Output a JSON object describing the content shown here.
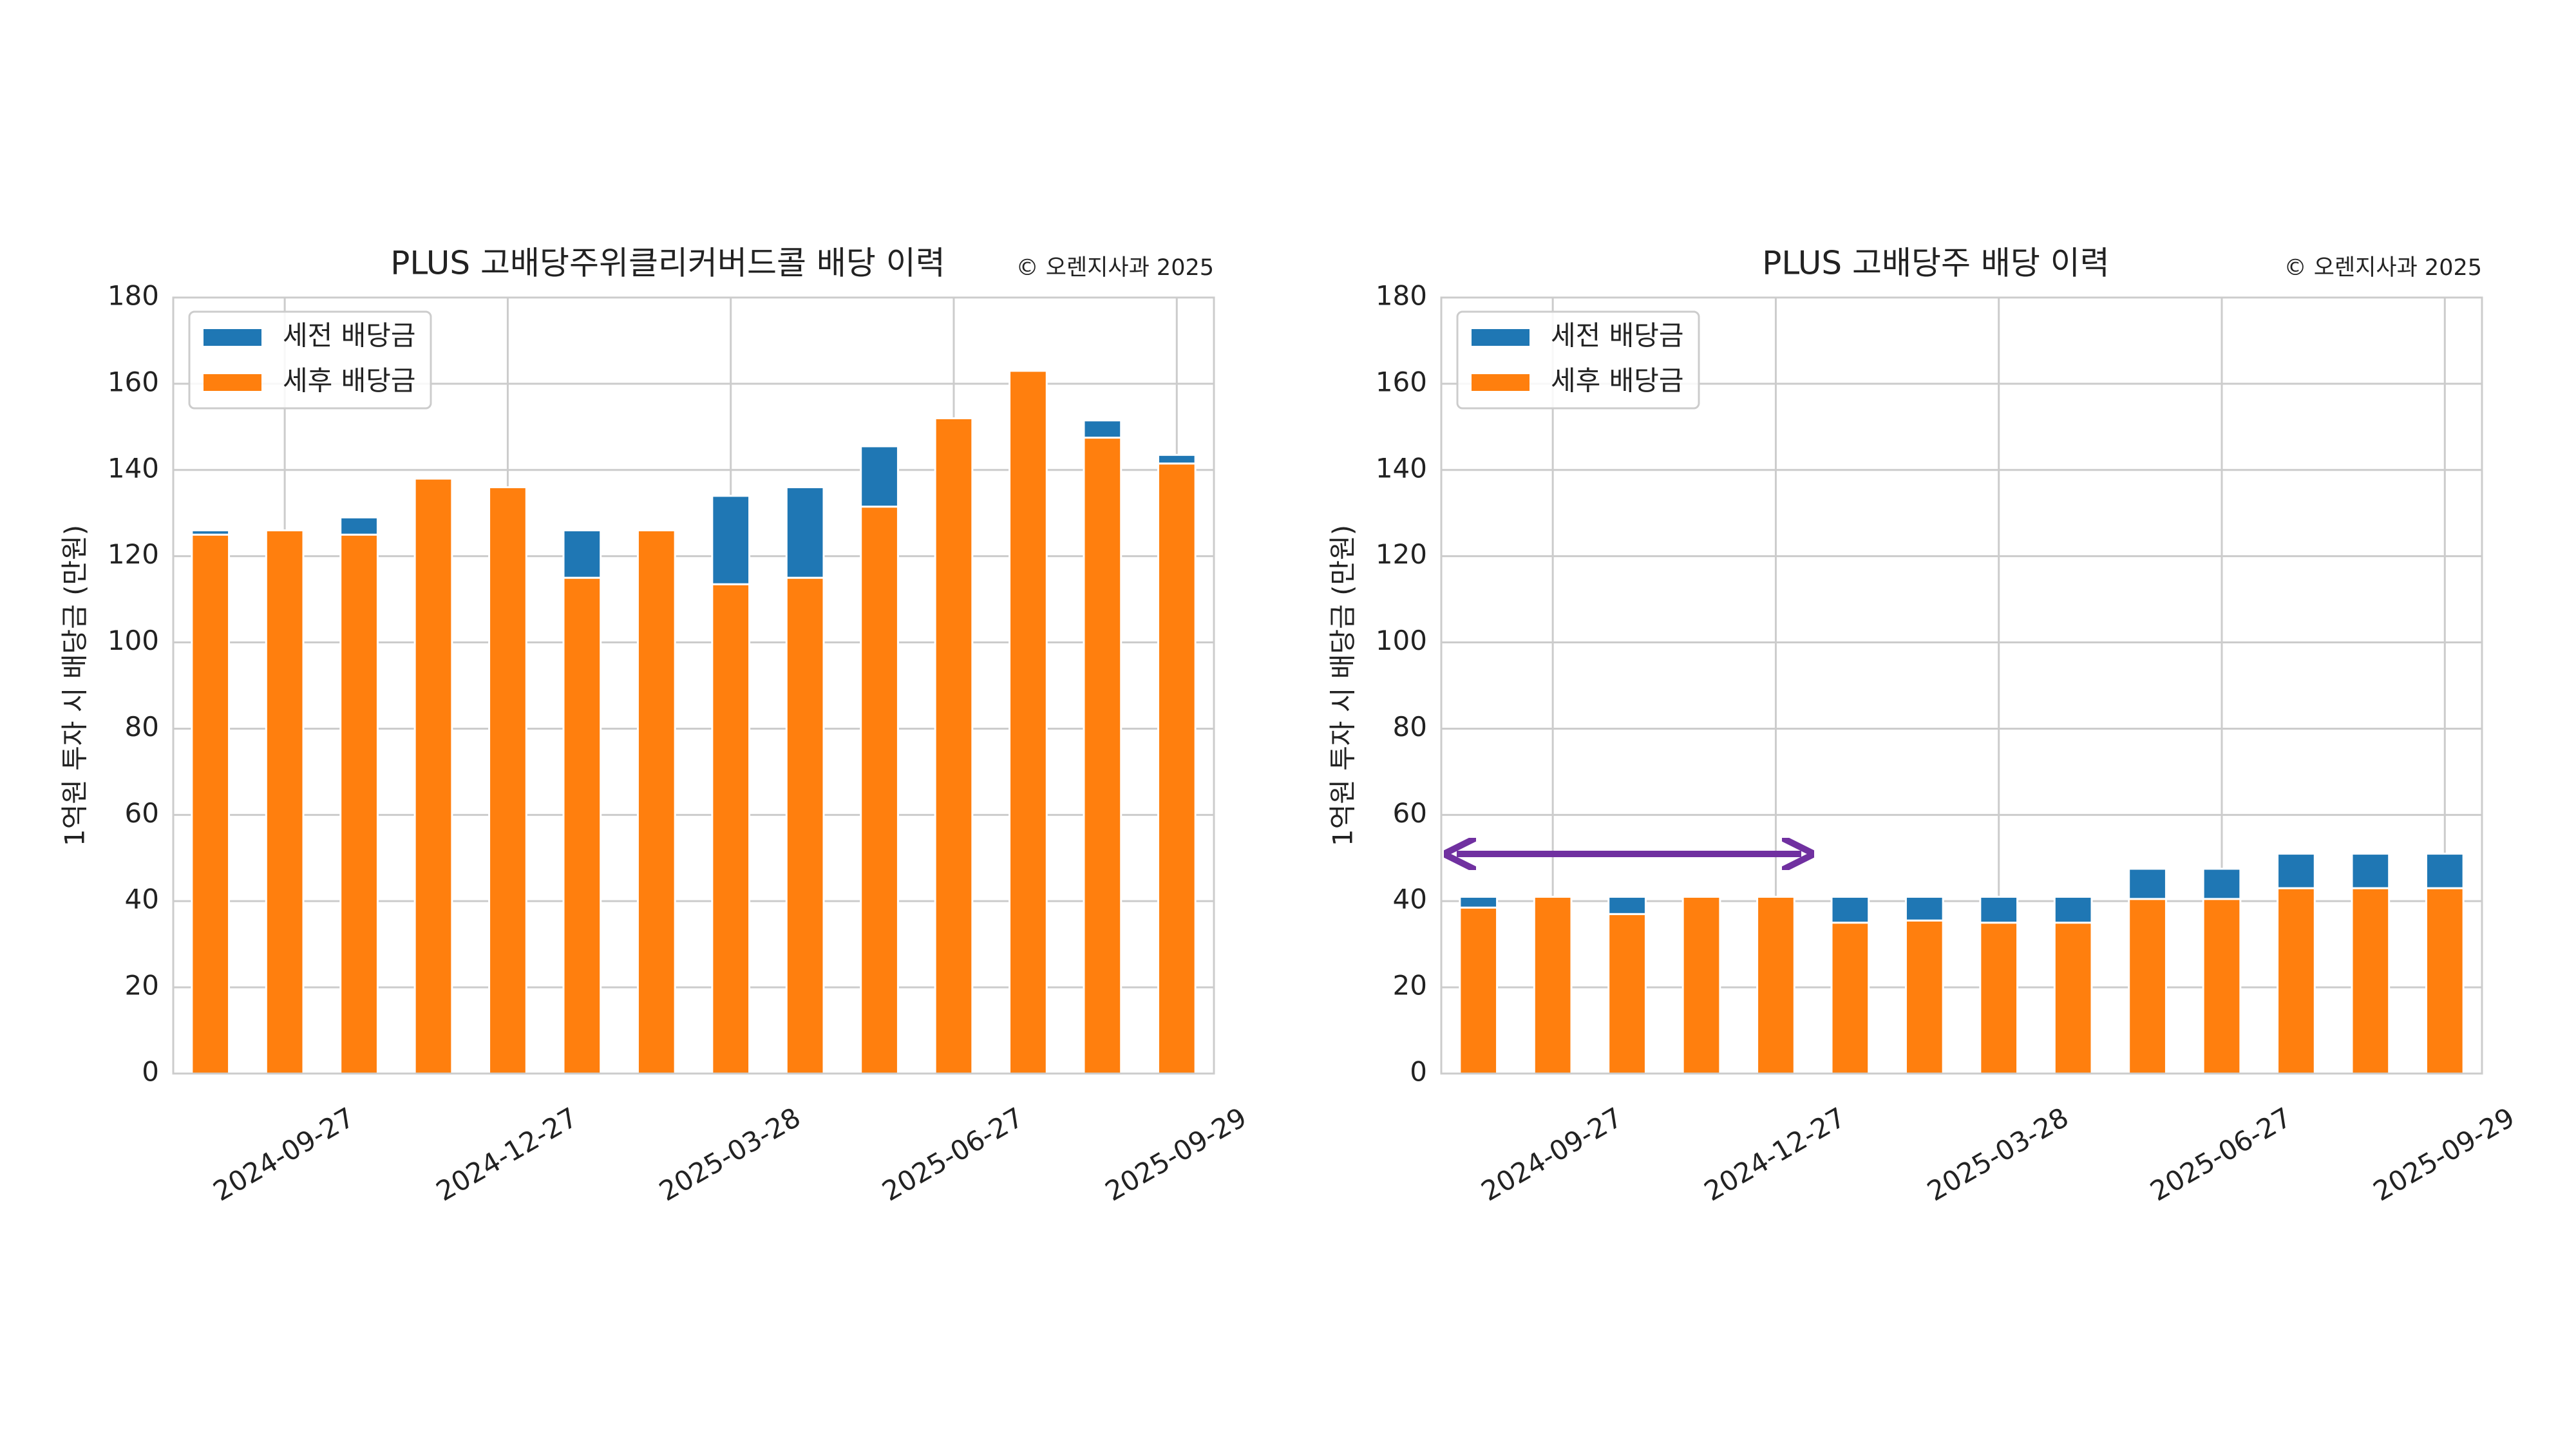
{
  "chart_data": [
    {
      "type": "bar",
      "stacked": true,
      "title": "PLUS 고배당주위클리커버드콜 배당 이력",
      "annotation": "© 오렌지사과 2025",
      "ylabel": "1억원 투자 시 배당금 (만원)",
      "categories": [
        null,
        "2024-09-27",
        null,
        null,
        "2024-12-27",
        null,
        null,
        "2025-03-28",
        null,
        null,
        "2025-06-27",
        null,
        null,
        "2025-09-29"
      ],
      "series": [
        {
          "name": "세전 배당금",
          "color": "#1f77b4",
          "values": [
            1,
            0,
            4,
            0,
            0,
            11,
            0,
            20.5,
            21,
            14,
            0,
            0,
            4,
            2
          ]
        },
        {
          "name": "세후 배당금",
          "color": "#ff7f0e",
          "values": [
            125,
            126,
            125,
            138,
            136,
            115,
            126,
            113.5,
            115,
            131.5,
            152,
            163,
            147.5,
            141.5
          ]
        }
      ],
      "ylim": [
        0,
        180
      ],
      "yticks": [
        0,
        20,
        40,
        60,
        80,
        100,
        120,
        140,
        160,
        180
      ],
      "grid": true,
      "legend": "upper left"
    },
    {
      "type": "bar",
      "stacked": true,
      "title": "PLUS 고배당주 배당 이력",
      "annotation": "© 오렌지사과 2025",
      "ylabel": "1억원 투자 시 배당금 (만원)",
      "categories": [
        null,
        "2024-09-27",
        null,
        null,
        "2024-12-27",
        null,
        null,
        "2025-03-28",
        null,
        null,
        "2025-06-27",
        null,
        null,
        "2025-09-29"
      ],
      "series": [
        {
          "name": "세전 배당금",
          "color": "#1f77b4",
          "values": [
            2.5,
            0,
            4,
            0,
            0,
            6,
            5.5,
            6,
            6,
            7,
            7,
            8,
            8,
            8
          ]
        },
        {
          "name": "세후 배당금",
          "color": "#ff7f0e",
          "values": [
            38.5,
            41,
            37,
            41,
            41,
            35,
            35.5,
            35,
            35,
            40.5,
            40.5,
            43,
            43,
            43
          ]
        }
      ],
      "ylim": [
        0,
        180
      ],
      "yticks": [
        0,
        20,
        40,
        60,
        80,
        100,
        120,
        140,
        160,
        180
      ],
      "grid": true,
      "legend": "upper left"
    }
  ]
}
